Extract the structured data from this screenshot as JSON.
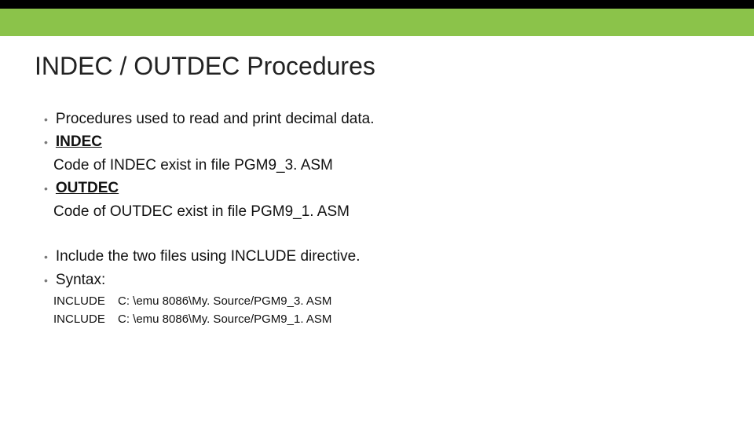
{
  "colors": {
    "band_dark": "#000000",
    "band_green": "#8BC34A",
    "background": "#ffffff",
    "text": "#111111",
    "bullet": "#7a7a7a"
  },
  "typography": {
    "title_fontsize": 32,
    "body_fontsize": 19,
    "code_fontsize": 15,
    "font_family": "Arial"
  },
  "title": "INDEC / OUTDEC Procedures",
  "block1": {
    "bullets": {
      "b0": "Procedures used to read and print decimal data.",
      "b1_label": "INDEC",
      "b1_desc": "Code of INDEC exist in file PGM9_3. ASM",
      "b2_label": "OUTDEC",
      "b2_desc": "Code of OUTDEC exist in file PGM9_1. ASM"
    }
  },
  "block2": {
    "bullets": {
      "b0": "Include the two files using INCLUDE directive.",
      "b1": "Syntax:"
    },
    "code": {
      "kw": "INCLUDE",
      "line0_path": "C: \\emu 8086\\My. Source/PGM9_3. ASM",
      "line1_path": "C: \\emu 8086\\My. Source/PGM9_1. ASM"
    }
  }
}
